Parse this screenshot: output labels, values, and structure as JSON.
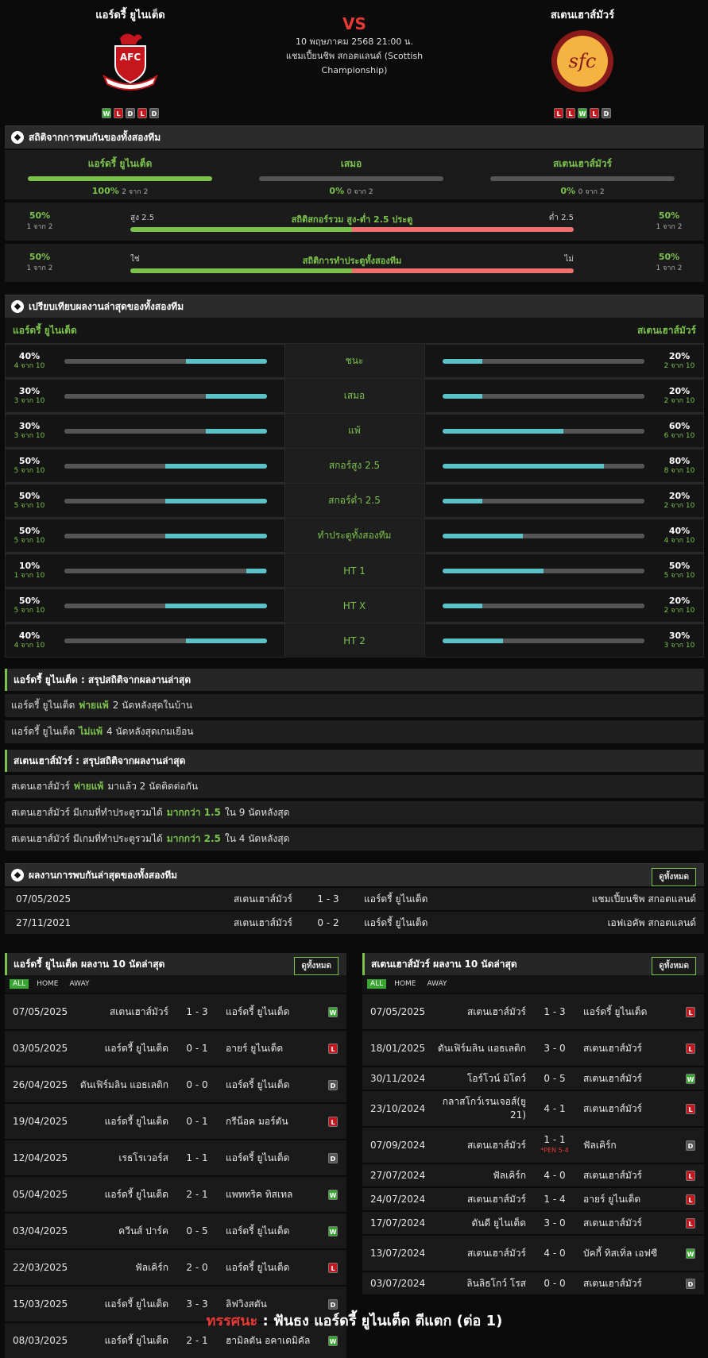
{
  "home": {
    "name": "แอร์ดรี้ ยูไนเต็ด",
    "logo_text": "AFC",
    "form": [
      "W",
      "L",
      "D",
      "L",
      "D"
    ]
  },
  "away": {
    "name": "สเตนเฮาส์มัวร์",
    "logo_text": "sfc",
    "form": [
      "L",
      "L",
      "W",
      "L",
      "D"
    ]
  },
  "match": {
    "vs": "VS",
    "datetime": "10 พฤษภาคม 2568 21:00 น.",
    "competition": "แชมเปี้ยนชิพ สกอตแลนด์ (Scottish Championship)"
  },
  "h2h": {
    "title": "สถิติจากการพบกันของทั้งสองทีม",
    "cols": [
      {
        "name": "แอร์ดรี้ ยูไนเต็ด",
        "pct": "100%",
        "of": "2 จาก 2",
        "fill": 1.0
      },
      {
        "name": "เสมอ",
        "pct": "0%",
        "of": "0 จาก 2",
        "fill": 0
      },
      {
        "name": "สเตนเฮาส์มัวร์",
        "pct": "0%",
        "of": "0 จาก 2",
        "fill": 0
      }
    ],
    "ou": {
      "title": "สถิติสกอร์รวม สูง-ต่ำ 2.5 ประตู",
      "left_label": "สูง 2.5",
      "right_label": "ต่ำ 2.5",
      "left_pct": "50%",
      "left_of": "1 จาก 2",
      "right_pct": "50%",
      "right_of": "1 จาก 2",
      "fill": 0.5
    },
    "btts": {
      "title": "สถิติการทำประตูทั้งสองทีม",
      "left_label": "ใช่",
      "right_label": "ไม่",
      "left_pct": "50%",
      "left_of": "1 จาก 2",
      "right_pct": "50%",
      "right_of": "1 จาก 2",
      "fill": 0.5
    }
  },
  "compare": {
    "title": "เปรียบเทียบผลงานล่าสุดของทั้งสองทีม",
    "home": "แอร์ดรี้ ยูไนเต็ด",
    "away": "สเตนเฮาส์มัวร์",
    "rows": [
      {
        "label": "ชนะ",
        "hp": "40%",
        "hs": "4 จาก 10",
        "hf": 0.4,
        "ap": "20%",
        "as": "2 จาก 10",
        "af": 0.2
      },
      {
        "label": "เสมอ",
        "hp": "30%",
        "hs": "3 จาก 10",
        "hf": 0.3,
        "ap": "20%",
        "as": "2 จาก 10",
        "af": 0.2
      },
      {
        "label": "แพ้",
        "hp": "30%",
        "hs": "3 จาก 10",
        "hf": 0.3,
        "ap": "60%",
        "as": "6 จาก 10",
        "af": 0.6
      },
      {
        "label": "สกอร์สูง 2.5",
        "hp": "50%",
        "hs": "5 จาก 10",
        "hf": 0.5,
        "ap": "80%",
        "as": "8 จาก 10",
        "af": 0.8
      },
      {
        "label": "สกอร์ต่ำ 2.5",
        "hp": "50%",
        "hs": "5 จาก 10",
        "hf": 0.5,
        "ap": "20%",
        "as": "2 จาก 10",
        "af": 0.2
      },
      {
        "label": "ทำประตูทั้งสองทีม",
        "hp": "50%",
        "hs": "5 จาก 10",
        "hf": 0.5,
        "ap": "40%",
        "as": "4 จาก 10",
        "af": 0.4
      },
      {
        "label": "HT 1",
        "hp": "10%",
        "hs": "1 จาก 10",
        "hf": 0.1,
        "ap": "50%",
        "as": "5 จาก 10",
        "af": 0.5
      },
      {
        "label": "HT X",
        "hp": "50%",
        "hs": "5 จาก 10",
        "hf": 0.5,
        "ap": "20%",
        "as": "2 จาก 10",
        "af": 0.2
      },
      {
        "label": "HT 2",
        "hp": "40%",
        "hs": "4 จาก 10",
        "hf": 0.4,
        "ap": "30%",
        "as": "3 จาก 10",
        "af": 0.3
      }
    ]
  },
  "summary_home": {
    "title": "แอร์ดรี้ ยูไนเต็ด : สรุปสถิติจากผลงานล่าสุด",
    "rows": [
      {
        "pre": "แอร์ดรี้ ยูไนเต็ด",
        "hl": "พ่ายแพ้",
        "post": "2  นัดหลังสุดในบ้าน"
      },
      {
        "pre": "แอร์ดรี้ ยูไนเต็ด",
        "hl": "ไม่แพ้",
        "post": "4  นัดหลังสุดเกมเยือน"
      }
    ]
  },
  "summary_away": {
    "title": "สเตนเฮาส์มัวร์ : สรุปสถิติจากผลงานล่าสุด",
    "rows": [
      {
        "pre": "สเตนเฮาส์มัวร์",
        "hl": "พ่ายแพ้",
        "post": "มาแล้ว 2 นัดติดต่อกัน"
      },
      {
        "pre": "สเตนเฮาส์มัวร์  มีเกมที่ทำประตูรวมได้",
        "hl": "มากกว่า  1.5",
        "post": "ใน 9 นัดหลังสุด"
      },
      {
        "pre": "สเตนเฮาส์มัวร์  มีเกมที่ทำประตูรวมได้",
        "hl": "มากกว่า  2.5",
        "post": "ใน 4 นัดหลังสุด"
      }
    ]
  },
  "headtohead": {
    "title": "ผลงานการพบกันล่าสุดของทั้งสองทีม",
    "view_all": "ดูทั้งหมด",
    "rows": [
      {
        "date": "07/05/2025",
        "home": "สเตนเฮาส์มัวร์",
        "score": "1 - 3",
        "away": "แอร์ดรี้ ยูไนเต็ด",
        "comp": "แชมเปี้ยนชิพ สกอตแลนด์"
      },
      {
        "date": "27/11/2021",
        "home": "สเตนเฮาส์มัวร์",
        "score": "0 - 2",
        "away": "แอร์ดรี้ ยูไนเต็ด",
        "comp": "เอฟเอคัพ สกอตแลนด์"
      }
    ]
  },
  "tabs": [
    "ALL",
    "HOME",
    "AWAY"
  ],
  "last_home": {
    "title": "แอร์ดรี้ ยูไนเต็ด ผลงาน 10 นัดล่าสุด",
    "view_all": "ดูทั้งหมด",
    "rows": [
      {
        "date": "07/05/2025",
        "home": "สเตนเฮาส์มัวร์",
        "score": "1 - 3",
        "away": "แอร์ดรี้ ยูไนเต็ด",
        "res": "W"
      },
      {
        "date": "03/05/2025",
        "home": "แอร์ดรี้ ยูไนเต็ด",
        "score": "0 - 1",
        "away": "อายร์ ยูไนเต็ด",
        "res": "L"
      },
      {
        "date": "26/04/2025",
        "home": "ดันเฟิร์มลิน แอธเลติก",
        "score": "0 - 0",
        "away": "แอร์ดรี้ ยูไนเต็ด",
        "res": "D"
      },
      {
        "date": "19/04/2025",
        "home": "แอร์ดรี้ ยูไนเต็ด",
        "score": "0 - 1",
        "away": "กรีน็อค มอร์ตัน",
        "res": "L"
      },
      {
        "date": "12/04/2025",
        "home": "เรธโรเวอร์ส",
        "score": "1 - 1",
        "away": "แอร์ดรี้ ยูไนเต็ด",
        "res": "D"
      },
      {
        "date": "05/04/2025",
        "home": "แอร์ดรี้ ยูไนเต็ด",
        "score": "2 - 1",
        "away": "แพททริค ทิสเทล",
        "res": "W"
      },
      {
        "date": "03/04/2025",
        "home": "ควีนส์ ปาร์ค",
        "score": "0 - 5",
        "away": "แอร์ดรี้ ยูไนเต็ด",
        "res": "W"
      },
      {
        "date": "22/03/2025",
        "home": "ฟัลเคิร์ก",
        "score": "2 - 0",
        "away": "แอร์ดรี้ ยูไนเต็ด",
        "res": "L"
      },
      {
        "date": "15/03/2025",
        "home": "แอร์ดรี้ ยูไนเต็ด",
        "score": "3 - 3",
        "away": "ลิฟวิงสตัน",
        "res": "D"
      },
      {
        "date": "08/03/2025",
        "home": "แอร์ดรี้ ยูไนเต็ด",
        "score": "2 - 1",
        "away": "ฮามิลตัน อคาเดมิคัล",
        "res": "W"
      }
    ]
  },
  "last_away": {
    "title": "สเตนเฮาส์มัวร์ ผลงาน 10 นัดล่าสุด",
    "view_all": "ดูทั้งหมด",
    "rows": [
      {
        "date": "07/05/2025",
        "home": "สเตนเฮาส์มัวร์",
        "score": "1 - 3",
        "away": "แอร์ดรี้ ยูไนเต็ด",
        "res": "L"
      },
      {
        "date": "18/01/2025",
        "home": "ดันเฟิร์มลิน แอธเลติก",
        "score": "3 - 0",
        "away": "สเตนเฮาส์มัวร์",
        "res": "L"
      },
      {
        "date": "30/11/2024",
        "home": "โอร์โวน์ มิโดว์",
        "score": "0 - 5",
        "away": "สเตนเฮาส์มัวร์",
        "res": "W"
      },
      {
        "date": "23/10/2024",
        "home": "กลาสโกว์เรนเจอส์(ยู 21)",
        "score": "4 - 1",
        "away": "สเตนเฮาส์มัวร์",
        "res": "L"
      },
      {
        "date": "07/09/2024",
        "home": "สเตนเฮาส์มัวร์",
        "score": "1 - 1",
        "pen": "*PEN 5-4",
        "away": "ฟัลเคิร์ก",
        "res": "D"
      },
      {
        "date": "27/07/2024",
        "home": "ฟัลเคิร์ก",
        "score": "4 - 0",
        "away": "สเตนเฮาส์มัวร์",
        "res": "L"
      },
      {
        "date": "24/07/2024",
        "home": "สเตนเฮาส์มัวร์",
        "score": "1 - 4",
        "away": "อายร์ ยูไนเต็ด",
        "res": "L"
      },
      {
        "date": "17/07/2024",
        "home": "ดันดี ยูไนเต็ด",
        "score": "3 - 0",
        "away": "สเตนเฮาส์มัวร์",
        "res": "L"
      },
      {
        "date": "13/07/2024",
        "home": "สเตนเฮาส์มัวร์",
        "score": "4 - 0",
        "away": "บัคกี้ ทิสเทิ่ล เอฟซี",
        "res": "W"
      },
      {
        "date": "03/07/2024",
        "home": "ลินลิธโกว์ โรส",
        "score": "0 - 0",
        "away": "สเตนเฮาส์มัวร์",
        "res": "D"
      }
    ]
  },
  "verdict": {
    "key": "ทรรศนะ",
    "sep": ":",
    "text": "ฟันธง แอร์ดรี้ ยูไนเต็ด ตีแตก (ต่อ 1)"
  },
  "colors": {
    "accent": "#7bc24c",
    "red": "#e53935",
    "bar_teal": "#5bc3c8"
  }
}
